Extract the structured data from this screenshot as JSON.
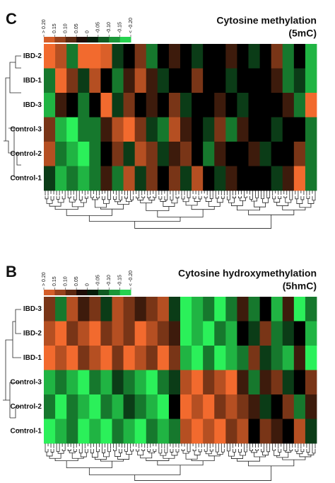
{
  "chart_data": [
    {
      "type": "heatmap",
      "panel": "C",
      "title": "Cytosine methylation",
      "subtitle": "(5mC)",
      "rows": [
        "IBD-2",
        "IBD-1",
        "IBD-3",
        "Control-3",
        "Control-2",
        "Control-1"
      ],
      "values": [
        [
          0.2,
          0.15,
          -0.1,
          0.2,
          0.2,
          0.18,
          -0.05,
          0,
          0.1,
          -0.1,
          0,
          0.05,
          0,
          -0.05,
          0,
          0,
          0.05,
          0,
          -0.05,
          0,
          0.1,
          -0.1,
          0,
          -0.15
        ],
        [
          -0.1,
          0.2,
          0.1,
          -0.05,
          0.15,
          0,
          -0.1,
          0.05,
          0.15,
          0.05,
          -0.05,
          0,
          0,
          0.1,
          0,
          0,
          -0.05,
          0,
          0,
          0,
          0.05,
          -0.1,
          -0.05,
          -0.15
        ],
        [
          -0.15,
          0.05,
          0,
          -0.1,
          0,
          0.2,
          -0.05,
          0.1,
          0,
          0.05,
          0,
          0.1,
          -0.05,
          0,
          0,
          0.05,
          0,
          -0.05,
          0,
          0,
          0,
          0.05,
          -0.1,
          0.2
        ],
        [
          0.1,
          -0.15,
          -0.2,
          -0.1,
          -0.1,
          0.05,
          0.15,
          0.2,
          0.1,
          -0.05,
          -0.1,
          0.15,
          0.05,
          0,
          -0.05,
          0.1,
          -0.1,
          0.05,
          0,
          0,
          -0.05,
          0,
          0,
          -0.1
        ],
        [
          0.15,
          -0.1,
          -0.15,
          -0.2,
          -0.1,
          0,
          0.1,
          -0.05,
          0.15,
          0.1,
          -0.05,
          0.05,
          0.1,
          0,
          -0.1,
          0.05,
          0,
          0,
          0.05,
          -0.05,
          0,
          0,
          0.1,
          -0.1
        ],
        [
          -0.05,
          -0.15,
          -0.1,
          -0.15,
          -0.1,
          0.05,
          -0.1,
          0.15,
          -0.05,
          0.1,
          0,
          0.1,
          -0.05,
          0.15,
          0,
          -0.05,
          0.05,
          0,
          0,
          0,
          -0.05,
          0.05,
          0.2,
          -0.1
        ]
      ],
      "clim": [
        -0.2,
        0.2
      ],
      "colors": {
        "high": "#f26a2e",
        "mid": "#000000",
        "low": "#2bf05a"
      },
      "cticks": [
        {
          "value": 0.2,
          "label": "> 0.20"
        },
        0.15,
        {
          "value": 0.1,
          "label": "0.10"
        },
        0.05,
        0,
        -0.05,
        {
          "value": -0.1,
          "label": "-0.10"
        },
        -0.15,
        {
          "value": -0.2,
          "label": "< -0.20"
        }
      ]
    },
    {
      "type": "heatmap",
      "panel": "B",
      "title": "Cytosine hydroxymethylation",
      "subtitle": "(5hmC)",
      "rows": [
        "IBD-3",
        "IBD-2",
        "IBD-1",
        "Control-3",
        "Control-2",
        "Control-1"
      ],
      "values": [
        [
          0.1,
          -0.1,
          0.15,
          0.05,
          0.1,
          -0.05,
          0.15,
          0.1,
          0.05,
          0.1,
          0.15,
          -0.05,
          -0.2,
          -0.15,
          -0.1,
          -0.2,
          -0.1,
          0.05,
          -0.1,
          0,
          -0.15,
          0.05,
          -0.2,
          -0.1
        ],
        [
          0.15,
          0.2,
          0.1,
          0.15,
          0.2,
          0.1,
          0.15,
          0.1,
          0.2,
          0.15,
          0.1,
          0.05,
          -0.2,
          -0.15,
          -0.2,
          -0.1,
          -0.15,
          0,
          -0.05,
          0.1,
          -0.1,
          -0.05,
          0,
          -0.15
        ],
        [
          0.2,
          0.15,
          0.2,
          0.1,
          0.15,
          0.2,
          0.1,
          0.2,
          0.15,
          0.1,
          0.2,
          0.1,
          -0.15,
          -0.2,
          -0.1,
          -0.2,
          -0.15,
          -0.1,
          0.1,
          -0.05,
          -0.1,
          -0.15,
          0.05,
          -0.2
        ],
        [
          -0.15,
          -0.1,
          -0.15,
          -0.2,
          -0.1,
          -0.15,
          -0.05,
          -0.1,
          -0.15,
          -0.2,
          -0.1,
          -0.05,
          0.15,
          0.2,
          0.1,
          0.15,
          0.2,
          0.05,
          -0.1,
          0.05,
          0.1,
          -0.05,
          0,
          0.1
        ],
        [
          -0.1,
          -0.2,
          -0.1,
          -0.15,
          -0.2,
          -0.1,
          -0.15,
          -0.05,
          -0.1,
          -0.15,
          -0.2,
          0,
          0.2,
          0.15,
          0.2,
          0.1,
          0.15,
          0.1,
          0.05,
          -0.05,
          0,
          0.1,
          -0.1,
          0.05
        ],
        [
          -0.2,
          -0.15,
          -0.1,
          -0.2,
          -0.15,
          -0.2,
          -0.1,
          -0.15,
          -0.2,
          -0.1,
          -0.15,
          -0.1,
          0.15,
          0.2,
          0.15,
          0.2,
          0.1,
          0.15,
          0,
          0.1,
          0.05,
          0,
          0.15,
          -0.05
        ]
      ],
      "clim": [
        -0.2,
        0.2
      ],
      "colors": {
        "high": "#f26a2e",
        "mid": "#000000",
        "low": "#2bf05a"
      },
      "cticks": [
        {
          "value": 0.2,
          "label": "> 0.20"
        },
        0.15,
        {
          "value": 0.1,
          "label": "0.10"
        },
        0.05,
        0,
        -0.05,
        {
          "value": -0.1,
          "label": "-0.10"
        },
        -0.15,
        {
          "value": -0.2,
          "label": "< -0.20"
        }
      ]
    }
  ]
}
